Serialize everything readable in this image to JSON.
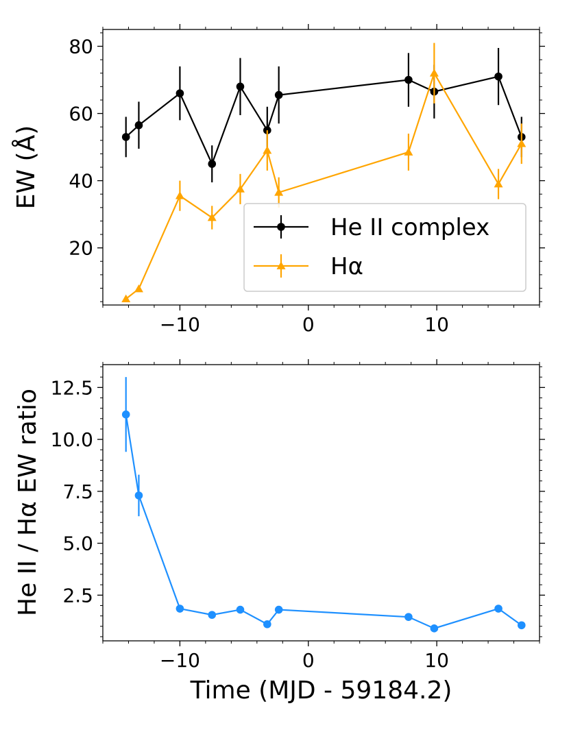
{
  "chart_data": [
    {
      "type": "line",
      "panel": "top",
      "ylabel": "EW (Å)",
      "xlabel": "",
      "xlim": [
        -16,
        18
      ],
      "ylim": [
        3,
        85
      ],
      "xticks": [
        -10,
        0,
        10
      ],
      "xtick_labels": [
        "−10",
        "0",
        "10"
      ],
      "yticks": [
        20,
        40,
        60,
        80
      ],
      "ytick_labels": [
        "20",
        "40",
        "60",
        "80"
      ],
      "legend_location": "lower-right",
      "series": [
        {
          "name": "He II complex",
          "color": "#000000",
          "marker": "circle",
          "x": [
            -14.2,
            -13.2,
            -10.0,
            -7.5,
            -5.3,
            -3.2,
            -2.3,
            7.8,
            9.8,
            14.8,
            16.6
          ],
          "y": [
            53,
            56.5,
            66,
            45,
            68,
            55,
            65.5,
            70,
            66.5,
            71,
            53
          ],
          "yerr": [
            6,
            7,
            8,
            5.5,
            8.5,
            7,
            8.5,
            8,
            8,
            8.5,
            6
          ]
        },
        {
          "name": "Hα",
          "color": "#ffa500",
          "marker": "triangle",
          "x": [
            -14.2,
            -13.2,
            -10.0,
            -7.5,
            -5.3,
            -3.2,
            -2.3,
            7.8,
            9.8,
            14.8,
            16.6
          ],
          "y": [
            4.8,
            7.8,
            35.5,
            29,
            37.5,
            49,
            36.5,
            48.5,
            72,
            39,
            51
          ],
          "yerr": [
            0.5,
            0.8,
            4.5,
            3.5,
            4.5,
            6,
            4.5,
            5.5,
            9,
            4.5,
            6
          ]
        }
      ]
    },
    {
      "type": "line",
      "panel": "bottom",
      "ylabel": "He II / Hα  EW ratio",
      "xlabel": "Time (MJD - 59184.2)",
      "xlim": [
        -16,
        18
      ],
      "ylim": [
        0.3,
        13.6
      ],
      "xticks": [
        -10,
        0,
        10
      ],
      "xtick_labels": [
        "−10",
        "0",
        "10"
      ],
      "yticks": [
        2.5,
        5.0,
        7.5,
        10.0,
        12.5
      ],
      "ytick_labels": [
        "2.5",
        "5.0",
        "7.5",
        "10.0",
        "12.5"
      ],
      "series": [
        {
          "name": "He II / Hα ratio",
          "color": "#1e90ff",
          "marker": "circle",
          "x": [
            -14.2,
            -13.2,
            -10.0,
            -7.5,
            -5.3,
            -3.2,
            -2.3,
            7.8,
            9.8,
            14.8,
            16.6
          ],
          "y": [
            11.2,
            7.3,
            1.85,
            1.55,
            1.8,
            1.1,
            1.8,
            1.45,
            0.9,
            1.85,
            1.05
          ],
          "yerr": [
            1.8,
            1.0,
            0.12,
            0.15,
            0.12,
            0.1,
            0.12,
            0.1,
            0.08,
            0.12,
            0.08
          ]
        }
      ]
    }
  ]
}
